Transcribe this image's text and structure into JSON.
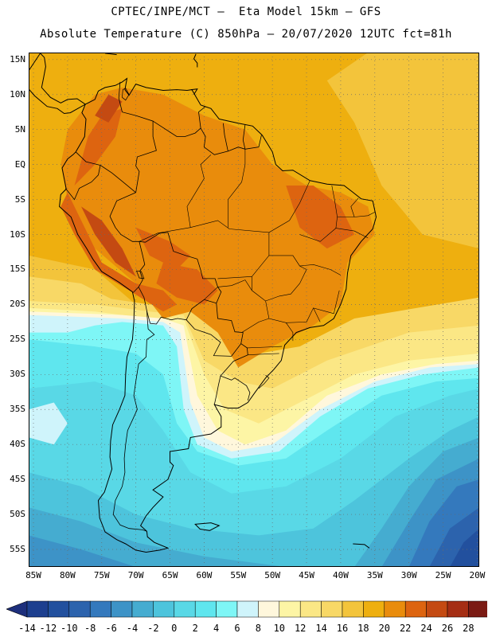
{
  "header": {
    "line1": "CPTEC/INPE/MCT –  Eta Model 15km – GFS",
    "line2": "Absolute Temperature (C) 850hPa – 20/07/2020 12UTC fct=81h"
  },
  "map": {
    "lat_labels": [
      "15N",
      "10N",
      "5N",
      "EQ",
      "5S",
      "10S",
      "15S",
      "20S",
      "25S",
      "30S",
      "35S",
      "40S",
      "45S",
      "50S",
      "55S"
    ],
    "lon_labels": [
      "85W",
      "80W",
      "75W",
      "70W",
      "65W",
      "60W",
      "55W",
      "50W",
      "45W",
      "40W",
      "35W",
      "30W",
      "25W",
      "20W"
    ],
    "domain": {
      "lon_min": -85.7,
      "lon_max": -19.7,
      "lat_min": -57.5,
      "lat_max": 16.0
    },
    "colors": {
      "neg14": "#1d3f8f",
      "neg12": "#22509e",
      "neg10": "#2c63ad",
      "neg8": "#3479bd",
      "neg6": "#3d93c7",
      "neg4": "#45acd0",
      "neg2": "#4dc4dc",
      "c0": "#59d8e6",
      "c2": "#5fe6ee",
      "c4": "#7ef6f6",
      "c6": "#cff4fb",
      "c8": "#fff7dc",
      "c10": "#fdf5a5",
      "c12": "#fbe785",
      "c14": "#f8d866",
      "c16": "#f3c43b",
      "c18": "#eeaf0f",
      "c20": "#e98c0c",
      "c22": "#dd6410",
      "c24": "#c44a12",
      "c26": "#a52e14",
      "c28": "#7b1b14"
    }
  },
  "colorbar": {
    "labels": [
      "-14",
      "-12",
      "-10",
      "-8",
      "-6",
      "-4",
      "-2",
      "0",
      "2",
      "4",
      "6",
      "8",
      "10",
      "12",
      "14",
      "16",
      "18",
      "20",
      "22",
      "24",
      "26",
      "28"
    ],
    "colors": [
      "#1d3f8f",
      "#22509e",
      "#2c63ad",
      "#3479bd",
      "#3d93c7",
      "#45acd0",
      "#4dc4dc",
      "#59d8e6",
      "#5fe6ee",
      "#7ef6f6",
      "#cff4fb",
      "#fff7dc",
      "#fdf5a5",
      "#fbe785",
      "#f8d866",
      "#f3c43b",
      "#eeaf0f",
      "#e98c0c",
      "#dd6410",
      "#c44a12",
      "#a52e14",
      "#7b1b14"
    ],
    "under_color": "#1d2f7c",
    "over_color": "#8e0d35"
  }
}
